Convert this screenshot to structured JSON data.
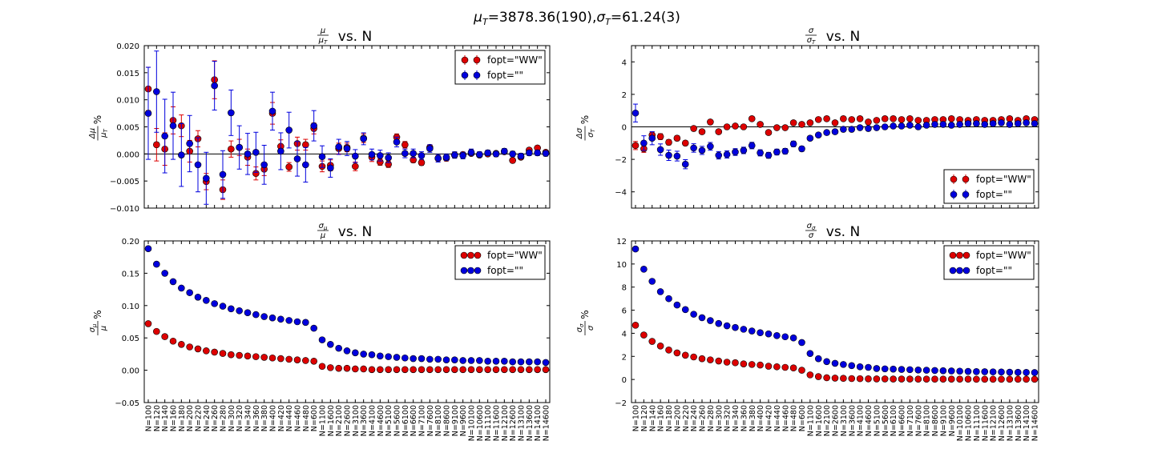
{
  "suptitle": {
    "mu_sym": "μ",
    "mu_sub": "T",
    "mu_val": "=3878.36(190),",
    "sigma_sym": "σ",
    "sigma_sub": "T",
    "sigma_val": "=61.24(3)"
  },
  "categories": [
    "N=100",
    "N=120",
    "N=140",
    "N=160",
    "N=180",
    "N=200",
    "N=220",
    "N=240",
    "N=260",
    "N=280",
    "N=300",
    "N=320",
    "N=340",
    "N=360",
    "N=380",
    "N=400",
    "N=420",
    "N=440",
    "N=460",
    "N=480",
    "N=600",
    "N=1100",
    "N=1600",
    "N=2100",
    "N=2600",
    "N=3100",
    "N=3600",
    "N=4100",
    "N=4600",
    "N=5100",
    "N=5600",
    "N=6100",
    "N=6600",
    "N=7100",
    "N=7600",
    "N=8100",
    "N=8600",
    "N=9100",
    "N=9600",
    "N=10100",
    "N=10600",
    "N=11100",
    "N=11600",
    "N=12100",
    "N=12600",
    "N=13100",
    "N=13600",
    "N=14100",
    "N=14600"
  ],
  "colors": {
    "ww": "#dd0000",
    "empty": "#0000dd",
    "edge": "#000000",
    "refline": "#000000",
    "errbar_ww": "#dd0000",
    "errbar_empty": "#0000dd"
  },
  "chart_data": [
    {
      "id": "mu",
      "type": "scatter",
      "title": {
        "frac_num": "μ",
        "frac_den": "μ",
        "frac_den_sub": "T",
        "suffix": " vs. N"
      },
      "ylabel": {
        "num": "Δμ",
        "den": "μ",
        "den_sub": "T",
        "unit": "%"
      },
      "ylim": [
        -0.01,
        0.02
      ],
      "yticks": [
        -0.01,
        -0.005,
        0.0,
        0.005,
        0.01,
        0.015,
        0.02
      ],
      "ytick_labels": [
        "−0.010",
        "−0.005",
        "0.000",
        "0.005",
        "0.010",
        "0.015",
        "0.020"
      ],
      "hline": 0,
      "legend": {
        "placement": "top-right",
        "entries": [
          "fopt=\"WW\"",
          "fopt=\"\""
        ]
      },
      "series": [
        {
          "name": "fopt=\"WW\"",
          "values": [
            0.012,
            0.0017,
            0.0009,
            0.0062,
            0.0052,
            0.0005,
            0.0028,
            -0.0051,
            0.0137,
            -0.0066,
            0.0009,
            0.0012,
            -0.0006,
            -0.0036,
            -0.0028,
            0.0075,
            0.0014,
            -0.0024,
            0.0019,
            0.0017,
            0.0047,
            -0.0023,
            -0.0021,
            0.001,
            0.0012,
            -0.0023,
            0.0029,
            -0.0006,
            -0.0015,
            -0.0019,
            0.0031,
            0.0017,
            -0.0011,
            -0.0016,
            0.0012,
            -0.0008,
            -0.0008,
            -0.0002,
            -0.0001,
            0.0001,
            -0.0002,
            0.0,
            0.0001,
            0.0004,
            -0.0012,
            -0.0006,
            0.0007,
            0.0011,
            0.0003
          ],
          "errors": [
            0.004,
            0.003,
            0.003,
            0.0025,
            0.002,
            0.002,
            0.0015,
            0.0015,
            0.0035,
            0.0018,
            0.0015,
            0.0015,
            0.0015,
            0.0012,
            0.0012,
            0.002,
            0.0012,
            0.0008,
            0.0012,
            0.001,
            0.001,
            0.001,
            0.001,
            0.001,
            0.0008,
            0.0008,
            0.0008,
            0.0008,
            0.0006,
            0.0006,
            0.0006,
            0.0006,
            0.0005,
            0.0005,
            0.0005,
            0.0005,
            0.0005,
            0.0005,
            0.0004,
            0.0004,
            0.0004,
            0.0004,
            0.0004,
            0.0004,
            0.0004,
            0.0004,
            0.0004,
            0.0004,
            0.0004
          ]
        },
        {
          "name": "fopt=\"\"",
          "values": [
            0.0075,
            0.0115,
            0.0033,
            0.0052,
            -0.0002,
            0.0019,
            -0.002,
            -0.0045,
            0.0126,
            -0.0038,
            0.0076,
            0.0012,
            0.0,
            0.0003,
            -0.002,
            0.0079,
            0.0005,
            0.0044,
            -0.0009,
            -0.002,
            0.0052,
            -0.0005,
            -0.0026,
            0.0013,
            0.001,
            -0.0004,
            0.0028,
            -0.0001,
            -0.0003,
            -0.0007,
            0.0022,
            0.0001,
            0.0001,
            -0.0003,
            0.001,
            -0.0008,
            -0.0006,
            -0.0002,
            -0.0003,
            0.0003,
            -0.0001,
            0.0002,
            0.0,
            0.0005,
            0.0,
            -0.0004,
            0.0002,
            0.0002,
            0.0001
          ],
          "errors": [
            0.0085,
            0.0075,
            0.0068,
            0.0062,
            0.0058,
            0.0052,
            0.005,
            0.0048,
            0.0045,
            0.0044,
            0.0042,
            0.004,
            0.0038,
            0.0037,
            0.0036,
            0.0035,
            0.0034,
            0.0033,
            0.0032,
            0.0032,
            0.0028,
            0.002,
            0.0017,
            0.0014,
            0.0013,
            0.0012,
            0.0011,
            0.001,
            0.001,
            0.0009,
            0.0009,
            0.0008,
            0.0008,
            0.0007,
            0.0007,
            0.0007,
            0.0006,
            0.0006,
            0.0006,
            0.0006,
            0.0005,
            0.0005,
            0.0005,
            0.0005,
            0.0005,
            0.0005,
            0.0005,
            0.0005,
            0.0005
          ]
        }
      ]
    },
    {
      "id": "sigma",
      "type": "scatter",
      "title": {
        "frac_num": "σ",
        "frac_den": "σ",
        "frac_den_sub": "T",
        "suffix": " vs. N"
      },
      "ylabel": {
        "num": "Δσ",
        "den": "σ",
        "den_sub": "T",
        "unit": "%"
      },
      "ylim": [
        -5,
        5
      ],
      "yticks": [
        -4,
        -2,
        0,
        2,
        4
      ],
      "ytick_labels": [
        "−4",
        "−2",
        "0",
        "2",
        "4"
      ],
      "hline": 0,
      "legend": {
        "placement": "bottom-right",
        "entries": [
          "fopt=\"WW\"",
          "fopt=\"\""
        ]
      },
      "series": [
        {
          "name": "fopt=\"WW\"",
          "values": [
            -1.15,
            -1.35,
            -0.5,
            -0.6,
            -0.95,
            -0.7,
            -1.0,
            -0.1,
            -0.3,
            0.3,
            -0.3,
            0.0,
            0.05,
            0.0,
            0.5,
            0.15,
            -0.35,
            -0.05,
            -0.05,
            0.25,
            0.15,
            0.25,
            0.45,
            0.5,
            0.25,
            0.5,
            0.45,
            0.5,
            0.3,
            0.4,
            0.5,
            0.5,
            0.45,
            0.5,
            0.4,
            0.4,
            0.45,
            0.45,
            0.5,
            0.45,
            0.4,
            0.45,
            0.4,
            0.4,
            0.45,
            0.5,
            0.4,
            0.5,
            0.45
          ],
          "errors": [
            0.25,
            0.22,
            0.2,
            0.18,
            0.16,
            0.15,
            0.14,
            0.13,
            0.12,
            0.12,
            0.11,
            0.11,
            0.1,
            0.1,
            0.1,
            0.09,
            0.09,
            0.09,
            0.09,
            0.08,
            0.08,
            0.07,
            0.07,
            0.06,
            0.06,
            0.06,
            0.05,
            0.05,
            0.05,
            0.05,
            0.05,
            0.05,
            0.05,
            0.05,
            0.05,
            0.05,
            0.05,
            0.05,
            0.05,
            0.05,
            0.05,
            0.05,
            0.05,
            0.05,
            0.05,
            0.05,
            0.05,
            0.05,
            0.05
          ]
        },
        {
          "name": "fopt=\"\"",
          "values": [
            0.85,
            -1.0,
            -0.7,
            -1.4,
            -1.75,
            -1.8,
            -2.3,
            -1.3,
            -1.45,
            -1.2,
            -1.75,
            -1.7,
            -1.55,
            -1.45,
            -1.15,
            -1.6,
            -1.75,
            -1.55,
            -1.5,
            -1.05,
            -1.35,
            -0.7,
            -0.5,
            -0.35,
            -0.3,
            -0.15,
            -0.15,
            -0.05,
            -0.1,
            -0.05,
            0.0,
            0.05,
            0.05,
            0.1,
            0.0,
            0.1,
            0.15,
            0.15,
            0.1,
            0.15,
            0.2,
            0.2,
            0.15,
            0.2,
            0.25,
            0.15,
            0.2,
            0.25,
            0.2
          ],
          "errors": [
            0.55,
            0.45,
            0.4,
            0.35,
            0.32,
            0.3,
            0.28,
            0.26,
            0.25,
            0.24,
            0.23,
            0.22,
            0.21,
            0.2,
            0.2,
            0.19,
            0.18,
            0.18,
            0.17,
            0.17,
            0.15,
            0.12,
            0.1,
            0.09,
            0.08,
            0.08,
            0.07,
            0.07,
            0.06,
            0.06,
            0.06,
            0.06,
            0.05,
            0.05,
            0.05,
            0.05,
            0.05,
            0.05,
            0.05,
            0.05,
            0.05,
            0.05,
            0.05,
            0.05,
            0.05,
            0.05,
            0.05,
            0.05,
            0.05
          ]
        }
      ]
    },
    {
      "id": "sigma_mu",
      "type": "scatter",
      "title": {
        "frac_num": "σ",
        "frac_num_sub": "μ",
        "frac_den": "μ",
        "suffix": " vs. N"
      },
      "ylabel": {
        "num": "σ",
        "num_sub": "μ",
        "den": "μ",
        "unit": "%"
      },
      "ylim": [
        -0.05,
        0.2
      ],
      "yticks": [
        -0.05,
        0.0,
        0.05,
        0.1,
        0.15,
        0.2
      ],
      "ytick_labels": [
        "−0.05",
        "0.00",
        "0.05",
        "0.10",
        "0.15",
        "0.20"
      ],
      "legend": {
        "placement": "top-right",
        "entries": [
          "fopt=\"WW\"",
          "fopt=\"\""
        ]
      },
      "series": [
        {
          "name": "fopt=\"WW\"",
          "values": [
            0.072,
            0.06,
            0.052,
            0.045,
            0.04,
            0.036,
            0.033,
            0.03,
            0.028,
            0.026,
            0.024,
            0.023,
            0.022,
            0.021,
            0.02,
            0.019,
            0.018,
            0.017,
            0.016,
            0.015,
            0.014,
            0.006,
            0.004,
            0.003,
            0.003,
            0.002,
            0.002,
            0.001,
            0.001,
            0.001,
            0.001,
            0.001,
            0.001,
            0.001,
            0.001,
            0.001,
            0.001,
            0.001,
            0.001,
            0.001,
            0.001,
            0.001,
            0.001,
            0.001,
            0.001,
            0.001,
            0.001,
            0.001,
            0.001
          ]
        },
        {
          "name": "fopt=\"\"",
          "values": [
            0.188,
            0.164,
            0.15,
            0.137,
            0.127,
            0.12,
            0.113,
            0.108,
            0.103,
            0.099,
            0.095,
            0.092,
            0.089,
            0.086,
            0.083,
            0.081,
            0.079,
            0.077,
            0.075,
            0.074,
            0.065,
            0.047,
            0.04,
            0.034,
            0.03,
            0.027,
            0.025,
            0.024,
            0.022,
            0.021,
            0.02,
            0.019,
            0.018,
            0.018,
            0.017,
            0.017,
            0.016,
            0.016,
            0.015,
            0.015,
            0.015,
            0.014,
            0.014,
            0.014,
            0.013,
            0.013,
            0.013,
            0.013,
            0.012
          ]
        }
      ]
    },
    {
      "id": "sigma_sigma",
      "type": "scatter",
      "title": {
        "frac_num": "σ",
        "frac_num_sub": "σ",
        "frac_den": "σ",
        "suffix": " vs. N"
      },
      "ylabel": {
        "num": "σ",
        "num_sub": "σ",
        "den": "σ",
        "unit": "%"
      },
      "ylim": [
        -2,
        12
      ],
      "yticks": [
        -2,
        0,
        2,
        4,
        6,
        8,
        10,
        12
      ],
      "ytick_labels": [
        "−2",
        "0",
        "2",
        "4",
        "6",
        "8",
        "10",
        "12"
      ],
      "legend": {
        "placement": "top-right",
        "entries": [
          "fopt=\"WW\"",
          "fopt=\"\""
        ]
      },
      "series": [
        {
          "name": "fopt=\"WW\"",
          "values": [
            4.7,
            3.85,
            3.3,
            2.9,
            2.55,
            2.3,
            2.1,
            1.95,
            1.8,
            1.7,
            1.6,
            1.5,
            1.45,
            1.35,
            1.3,
            1.25,
            1.15,
            1.1,
            1.05,
            1.0,
            0.8,
            0.4,
            0.25,
            0.15,
            0.12,
            0.1,
            0.08,
            0.07,
            0.06,
            0.05,
            0.05,
            0.04,
            0.04,
            0.04,
            0.03,
            0.03,
            0.03,
            0.03,
            0.03,
            0.03,
            0.03,
            0.02,
            0.02,
            0.02,
            0.02,
            0.02,
            0.02,
            0.02,
            0.02
          ]
        },
        {
          "name": "fopt=\"\"",
          "values": [
            11.3,
            9.55,
            8.5,
            7.6,
            7.0,
            6.45,
            6.05,
            5.65,
            5.35,
            5.1,
            4.85,
            4.65,
            4.5,
            4.35,
            4.2,
            4.05,
            3.95,
            3.8,
            3.7,
            3.6,
            3.2,
            2.25,
            1.8,
            1.55,
            1.4,
            1.3,
            1.2,
            1.1,
            1.05,
            0.95,
            0.92,
            0.9,
            0.87,
            0.85,
            0.82,
            0.8,
            0.78,
            0.76,
            0.74,
            0.72,
            0.7,
            0.68,
            0.67,
            0.66,
            0.65,
            0.63,
            0.62,
            0.61,
            0.6
          ]
        }
      ]
    }
  ]
}
